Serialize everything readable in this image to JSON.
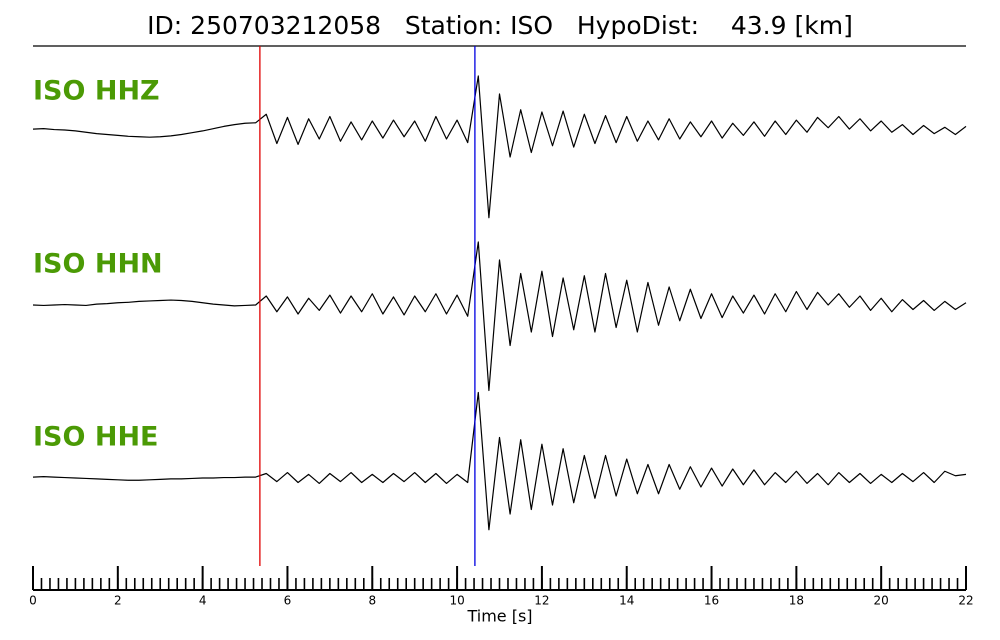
{
  "chart_data": {
    "type": "seismogram",
    "title": "ID: 250703212058   Station: ISO   HypoDist:    43.9 [km]",
    "xlabel": "Time [s]",
    "xlim": [
      0,
      22
    ],
    "xticks": [
      0,
      2,
      4,
      6,
      8,
      10,
      12,
      14,
      16,
      18,
      20,
      22
    ],
    "minor_tick_interval": 0.2,
    "label_color": "#4b9a05",
    "picks": [
      {
        "time": 5.35,
        "color": "#e00000"
      },
      {
        "time": 10.42,
        "color": "#0000e0"
      }
    ],
    "x": [
      0,
      0.25,
      0.5,
      0.75,
      1,
      1.25,
      1.5,
      1.75,
      2,
      2.25,
      2.5,
      2.75,
      3,
      3.25,
      3.5,
      3.75,
      4,
      4.25,
      4.5,
      4.75,
      5,
      5.25,
      5.5,
      5.75,
      6,
      6.25,
      6.5,
      6.75,
      7,
      7.25,
      7.5,
      7.75,
      8,
      8.25,
      8.5,
      8.75,
      9,
      9.25,
      9.5,
      9.75,
      10,
      10.25,
      10.5,
      10.75,
      11,
      11.25,
      11.5,
      11.75,
      12,
      12.25,
      12.5,
      12.75,
      13,
      13.25,
      13.5,
      13.75,
      14,
      14.25,
      14.5,
      14.75,
      15,
      15.25,
      15.5,
      15.75,
      16,
      16.25,
      16.5,
      16.75,
      17,
      17.25,
      17.5,
      17.75,
      18,
      18.25,
      18.5,
      18.75,
      19,
      19.25,
      19.5,
      19.75,
      20,
      20.25,
      20.5,
      20.75,
      21,
      21.25,
      21.5,
      21.75,
      22
    ],
    "series": [
      {
        "name": "ISO HHZ",
        "color": "#000000",
        "values": [
          0.02,
          0.03,
          0.01,
          0,
          -0.02,
          -0.05,
          -0.08,
          -0.1,
          -0.12,
          -0.14,
          -0.15,
          -0.16,
          -0.15,
          -0.13,
          -0.1,
          -0.06,
          -0.02,
          0.03,
          0.08,
          0.12,
          0.15,
          0.16,
          0.35,
          -0.3,
          0.28,
          -0.32,
          0.25,
          -0.2,
          0.3,
          -0.25,
          0.18,
          -0.22,
          0.2,
          -0.18,
          0.22,
          -0.15,
          0.2,
          -0.25,
          0.3,
          -0.2,
          0.22,
          -0.28,
          1.2,
          -1.95,
          0.8,
          -0.6,
          0.45,
          -0.5,
          0.4,
          -0.35,
          0.42,
          -0.38,
          0.35,
          -0.3,
          0.32,
          -0.28,
          0.3,
          -0.25,
          0.2,
          -0.22,
          0.25,
          -0.2,
          0.18,
          -0.15,
          0.2,
          -0.18,
          0.15,
          -0.12,
          0.18,
          -0.14,
          0.2,
          -0.1,
          0.22,
          -0.05,
          0.28,
          0.05,
          0.3,
          0.02,
          0.25,
          -0.02,
          0.2,
          -0.05,
          0.12,
          -0.1,
          0.1,
          -0.08,
          0.06,
          -0.1,
          0.08
        ]
      },
      {
        "name": "ISO HHN",
        "color": "#000000",
        "values": [
          0,
          -0.01,
          0,
          0.01,
          0,
          -0.01,
          0.02,
          0.03,
          0.05,
          0.06,
          0.08,
          0.09,
          0.1,
          0.11,
          0.1,
          0.08,
          0.05,
          0.02,
          0,
          -0.02,
          -0.01,
          0,
          0.2,
          -0.15,
          0.18,
          -0.2,
          0.15,
          -0.12,
          0.22,
          -0.18,
          0.2,
          -0.15,
          0.25,
          -0.2,
          0.18,
          -0.22,
          0.2,
          -0.15,
          0.25,
          -0.2,
          0.22,
          -0.25,
          1.4,
          -1.9,
          1.0,
          -0.9,
          0.7,
          -0.6,
          0.75,
          -0.7,
          0.6,
          -0.55,
          0.65,
          -0.6,
          0.7,
          -0.5,
          0.55,
          -0.6,
          0.5,
          -0.45,
          0.4,
          -0.35,
          0.35,
          -0.3,
          0.25,
          -0.28,
          0.2,
          -0.18,
          0.22,
          -0.2,
          0.25,
          -0.15,
          0.3,
          -0.1,
          0.28,
          0,
          0.25,
          -0.05,
          0.2,
          -0.12,
          0.15,
          -0.15,
          0.12,
          -0.1,
          0.1,
          -0.12,
          0.08,
          -0.1,
          0.05
        ]
      },
      {
        "name": "ISO HHE",
        "color": "#000000",
        "values": [
          0.02,
          0.03,
          0.02,
          0.01,
          0,
          -0.01,
          -0.02,
          -0.03,
          -0.04,
          -0.05,
          -0.05,
          -0.04,
          -0.03,
          -0.02,
          -0.02,
          -0.01,
          0,
          0,
          0.01,
          0.01,
          0.02,
          0.02,
          0.1,
          -0.08,
          0.12,
          -0.1,
          0.08,
          -0.12,
          0.1,
          -0.08,
          0.12,
          -0.1,
          0.08,
          -0.1,
          0.1,
          -0.08,
          0.12,
          -0.1,
          0.1,
          -0.12,
          0.08,
          -0.1,
          1.9,
          -1.15,
          0.9,
          -0.8,
          0.85,
          -0.7,
          0.75,
          -0.6,
          0.65,
          -0.55,
          0.5,
          -0.45,
          0.5,
          -0.4,
          0.42,
          -0.35,
          0.3,
          -0.35,
          0.3,
          -0.25,
          0.25,
          -0.2,
          0.22,
          -0.18,
          0.2,
          -0.15,
          0.18,
          -0.15,
          0.12,
          -0.1,
          0.15,
          -0.12,
          0.1,
          -0.15,
          0.12,
          -0.1,
          0.1,
          -0.12,
          0.08,
          -0.1,
          0.1,
          -0.08,
          0.12,
          -0.1,
          0.15,
          0.05,
          0.08
        ]
      }
    ]
  }
}
